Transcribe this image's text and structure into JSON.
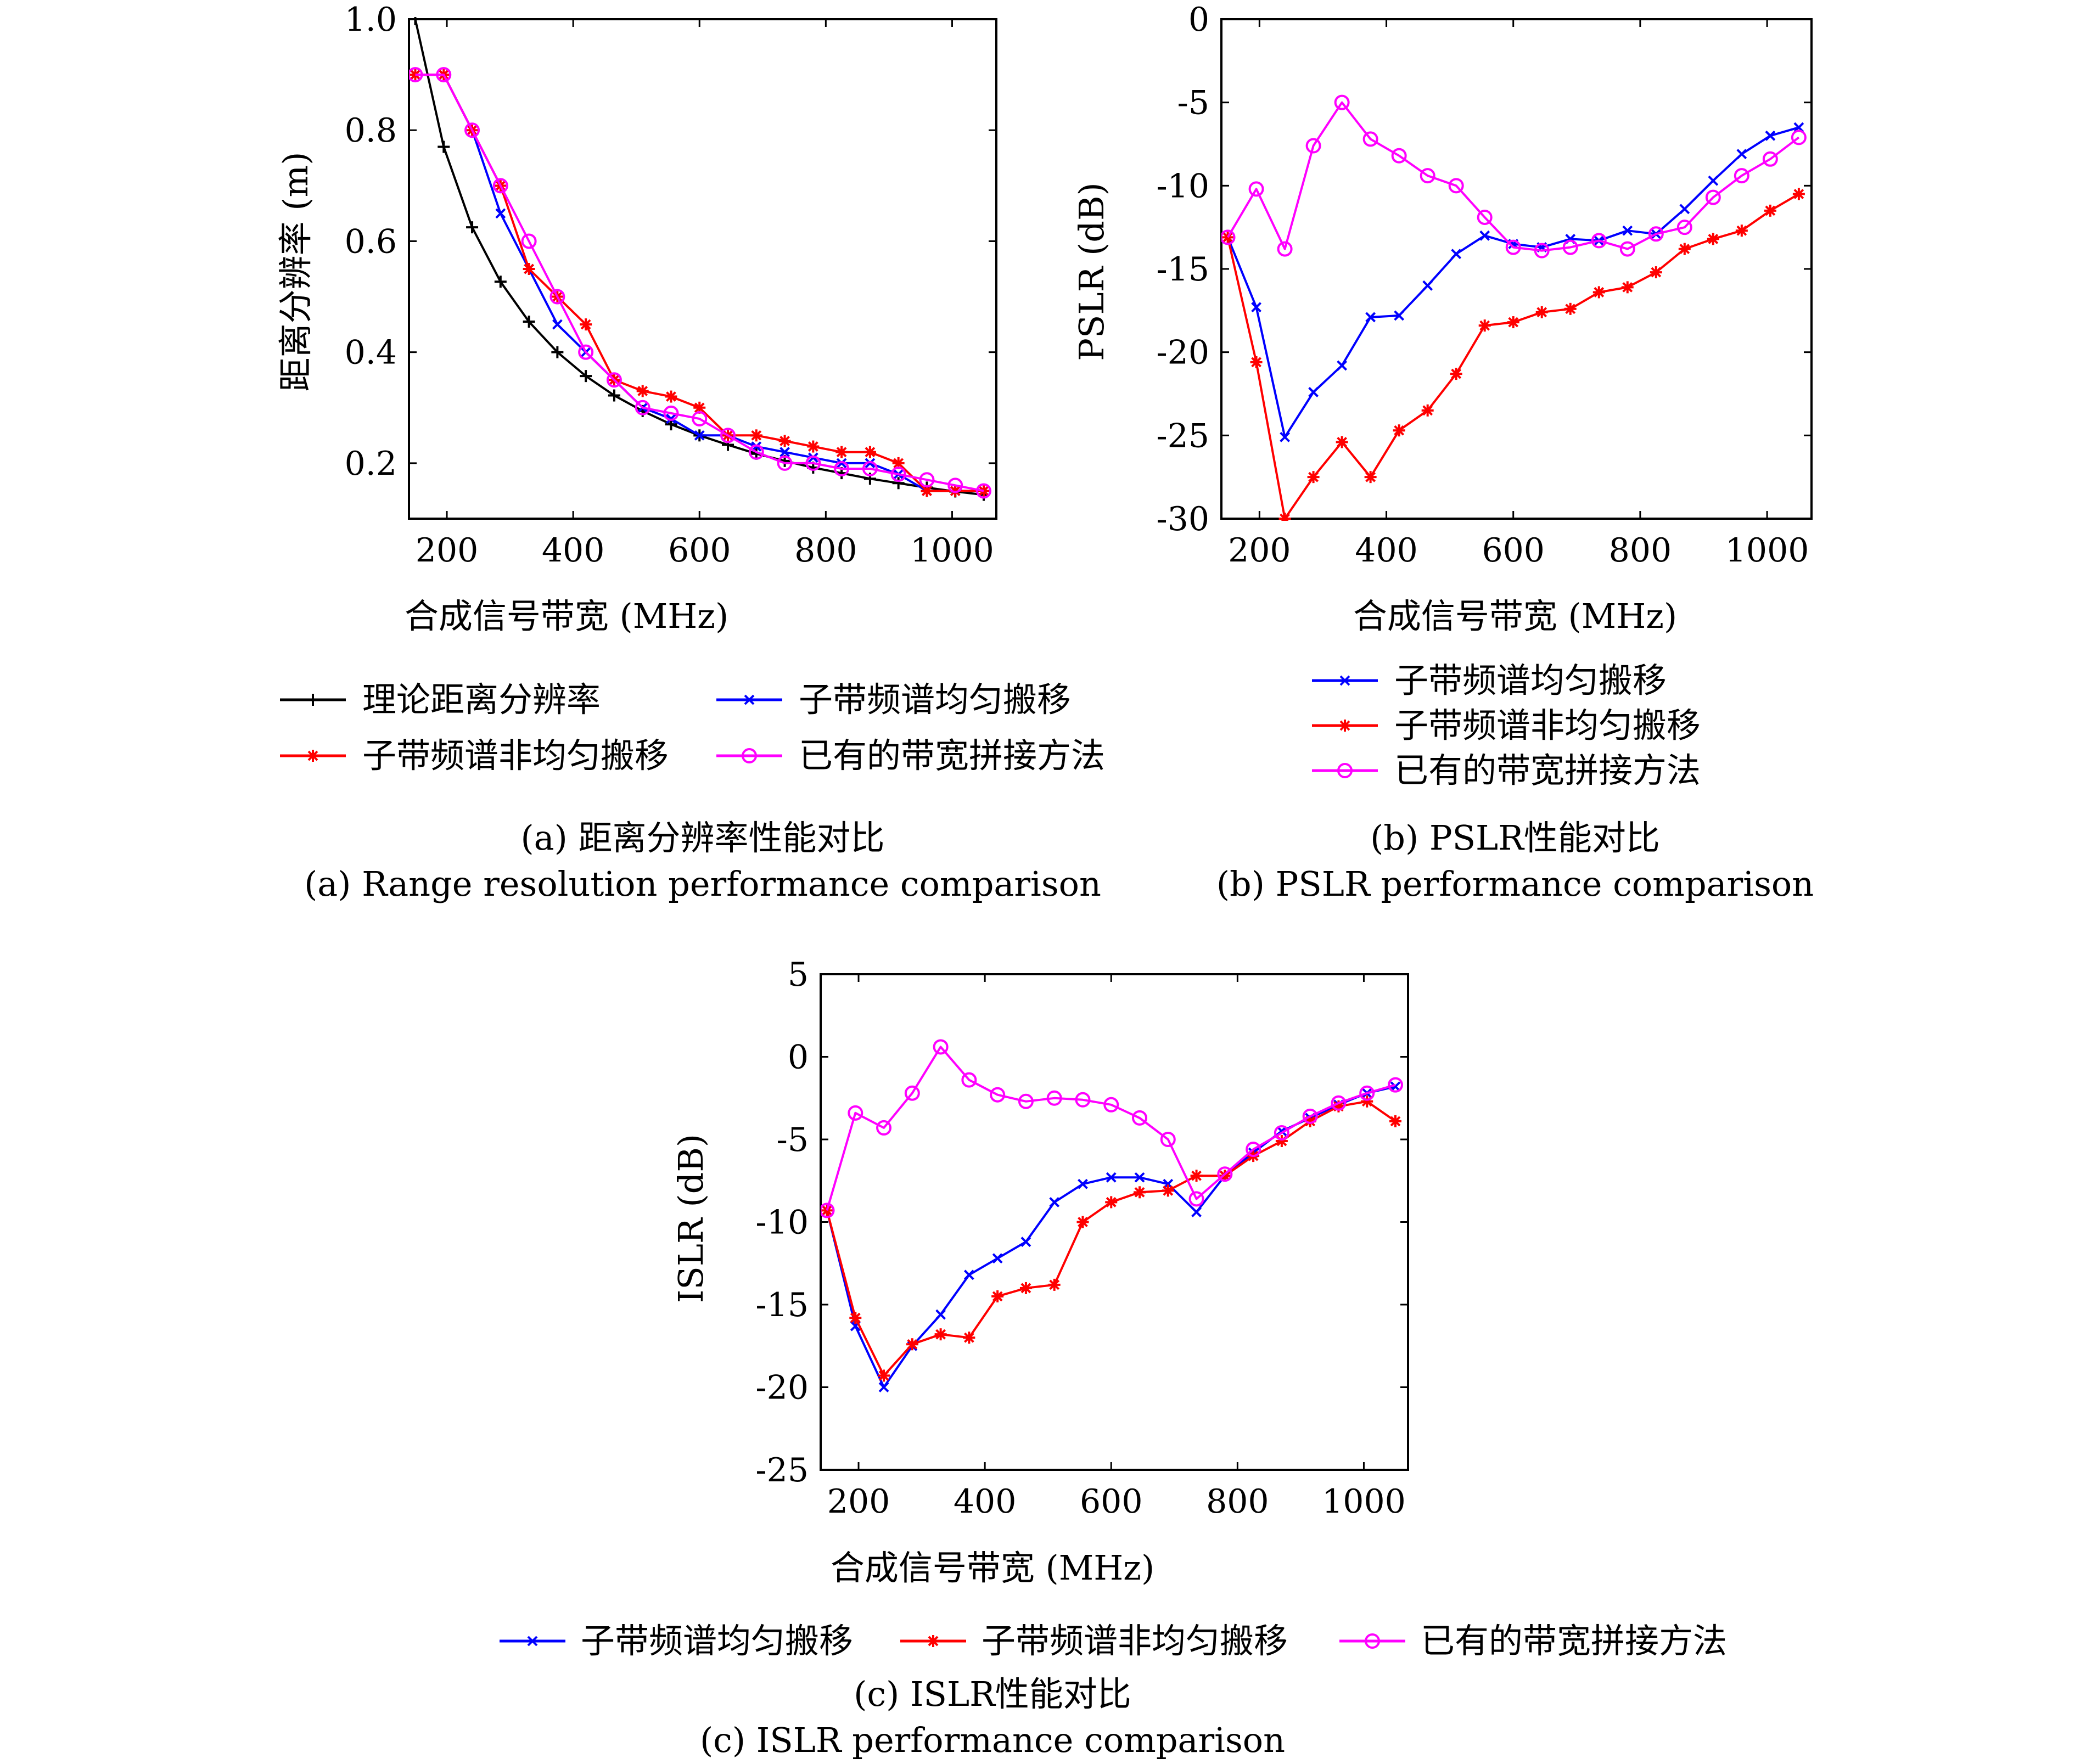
{
  "chart_data": [
    {
      "id": "a",
      "type": "line",
      "xlabel": "合成信号带宽 (MHz)",
      "ylabel": "距离分辨率 (m)",
      "xlim": [
        140,
        1070
      ],
      "ylim": [
        0.1,
        1.0
      ],
      "xticks": [
        "200",
        "400",
        "600",
        "800",
        "1000"
      ],
      "yticks": [
        "0.2",
        "0.4",
        "0.6",
        "0.8",
        "1.0"
      ],
      "grid": false,
      "legend_placement": "below",
      "legend": [
        "理论距离分辨率",
        "子带频谱均匀搬移",
        "子带频谱非均匀搬移",
        "已有的带宽拼接方法"
      ],
      "caption_cn": "(a) 距离分辨率性能对比",
      "caption_en": "(a) Range resolution performance comparison",
      "series": [
        {
          "name": "理论距离分辨率",
          "color": "#000000",
          "marker": "plus",
          "x": [
            150,
            195,
            240,
            285,
            330,
            375,
            420,
            465,
            510,
            555,
            600,
            645,
            690,
            735,
            780,
            825,
            870,
            915,
            960,
            1005,
            1050
          ],
          "y": [
            1.0,
            0.77,
            0.625,
            0.527,
            0.455,
            0.4,
            0.357,
            0.322,
            0.294,
            0.27,
            0.25,
            0.233,
            0.217,
            0.204,
            0.192,
            0.182,
            0.172,
            0.164,
            0.156,
            0.149,
            0.143
          ]
        },
        {
          "name": "子带频谱均匀搬移",
          "color": "#0000ff",
          "marker": "x",
          "x": [
            150,
            195,
            240,
            285,
            330,
            375,
            420,
            465,
            510,
            555,
            600,
            645,
            690,
            735,
            780,
            825,
            870,
            915,
            960,
            1005,
            1050
          ],
          "y": [
            0.9,
            0.9,
            0.8,
            0.65,
            0.55,
            0.45,
            0.4,
            0.35,
            0.3,
            0.28,
            0.25,
            0.25,
            0.23,
            0.22,
            0.21,
            0.2,
            0.2,
            0.18,
            0.15,
            0.15,
            0.15
          ]
        },
        {
          "name": "子带频谱非均匀搬移",
          "color": "#ff0000",
          "marker": "star",
          "x": [
            150,
            195,
            240,
            285,
            330,
            375,
            420,
            465,
            510,
            555,
            600,
            645,
            690,
            735,
            780,
            825,
            870,
            915,
            960,
            1005,
            1050
          ],
          "y": [
            0.9,
            0.9,
            0.8,
            0.7,
            0.55,
            0.5,
            0.45,
            0.35,
            0.33,
            0.32,
            0.3,
            0.25,
            0.25,
            0.24,
            0.23,
            0.22,
            0.22,
            0.2,
            0.15,
            0.15,
            0.15
          ]
        },
        {
          "name": "已有的带宽拼接方法",
          "color": "#ff00ff",
          "marker": "circle",
          "x": [
            150,
            195,
            240,
            285,
            330,
            375,
            420,
            465,
            510,
            555,
            600,
            645,
            690,
            735,
            780,
            825,
            870,
            915,
            960,
            1005,
            1050
          ],
          "y": [
            0.9,
            0.9,
            0.8,
            0.7,
            0.6,
            0.5,
            0.4,
            0.35,
            0.3,
            0.29,
            0.28,
            0.25,
            0.22,
            0.2,
            0.2,
            0.19,
            0.19,
            0.18,
            0.17,
            0.16,
            0.15
          ]
        }
      ]
    },
    {
      "id": "b",
      "type": "line",
      "xlabel": "合成信号带宽 (MHz)",
      "ylabel": "PSLR (dB)",
      "xlim": [
        140,
        1070
      ],
      "ylim": [
        -30,
        0
      ],
      "xticks": [
        "200",
        "400",
        "600",
        "800",
        "1000"
      ],
      "yticks": [
        "0",
        "-5",
        "-10",
        "-15",
        "-20",
        "-25",
        "-30"
      ],
      "grid": false,
      "legend_placement": "below",
      "legend": [
        "子带频谱均匀搬移",
        "子带频谱非均匀搬移",
        "已有的带宽拼接方法"
      ],
      "caption_cn": "(b) PSLR性能对比",
      "caption_en": "(b) PSLR performance comparison",
      "series": [
        {
          "name": "子带频谱均匀搬移",
          "color": "#0000ff",
          "marker": "x",
          "x": [
            150,
            195,
            240,
            285,
            330,
            375,
            420,
            465,
            510,
            555,
            600,
            645,
            690,
            735,
            780,
            825,
            870,
            915,
            960,
            1005,
            1050
          ],
          "y": [
            -13.1,
            -17.3,
            -25.1,
            -22.4,
            -20.8,
            -17.9,
            -17.8,
            -16.0,
            -14.1,
            -13.0,
            -13.5,
            -13.7,
            -13.2,
            -13.3,
            -12.7,
            -12.9,
            -11.4,
            -9.7,
            -8.1,
            -7.0,
            -6.5
          ]
        },
        {
          "name": "子带频谱非均匀搬移",
          "color": "#ff0000",
          "marker": "star",
          "x": [
            150,
            195,
            240,
            285,
            330,
            375,
            420,
            465,
            510,
            555,
            600,
            645,
            690,
            735,
            780,
            825,
            870,
            915,
            960,
            1005,
            1050
          ],
          "y": [
            -13.1,
            -20.6,
            -30.0,
            -27.5,
            -25.4,
            -27.5,
            -24.7,
            -23.5,
            -21.3,
            -18.4,
            -18.2,
            -17.6,
            -17.4,
            -16.4,
            -16.1,
            -15.2,
            -13.8,
            -13.2,
            -12.7,
            -11.5,
            -10.5
          ]
        },
        {
          "name": "已有的带宽拼接方法",
          "color": "#ff00ff",
          "marker": "circle",
          "x": [
            150,
            195,
            240,
            285,
            330,
            375,
            420,
            465,
            510,
            555,
            600,
            645,
            690,
            735,
            780,
            825,
            870,
            915,
            960,
            1005,
            1050
          ],
          "y": [
            -13.1,
            -10.2,
            -13.8,
            -7.6,
            -5.0,
            -7.2,
            -8.2,
            -9.4,
            -10.0,
            -11.9,
            -13.7,
            -13.9,
            -13.7,
            -13.3,
            -13.8,
            -12.9,
            -12.5,
            -10.7,
            -9.4,
            -8.4,
            -7.1
          ]
        }
      ]
    },
    {
      "id": "c",
      "type": "line",
      "xlabel": "合成信号带宽 (MHz)",
      "ylabel": "ISLR (dB)",
      "xlim": [
        140,
        1070
      ],
      "ylim": [
        -25,
        5
      ],
      "xticks": [
        "200",
        "400",
        "600",
        "800",
        "1000"
      ],
      "yticks": [
        "5",
        "0",
        "-5",
        "-10",
        "-15",
        "-20",
        "-25"
      ],
      "grid": false,
      "legend_placement": "below",
      "legend": [
        "子带频谱均匀搬移",
        "子带频谱非均匀搬移",
        "已有的带宽拼接方法"
      ],
      "caption_cn": "(c) ISLR性能对比",
      "caption_en": "(c) ISLR performance comparison",
      "series": [
        {
          "name": "子带频谱均匀搬移",
          "color": "#0000ff",
          "marker": "x",
          "x": [
            150,
            195,
            240,
            285,
            330,
            375,
            420,
            465,
            510,
            555,
            600,
            645,
            690,
            735,
            780,
            825,
            870,
            915,
            960,
            1005,
            1050
          ],
          "y": [
            -9.3,
            -16.3,
            -20.0,
            -17.5,
            -15.6,
            -13.2,
            -12.2,
            -11.2,
            -8.8,
            -7.7,
            -7.3,
            -7.3,
            -7.7,
            -9.4,
            -7.2,
            -5.8,
            -4.5,
            -3.7,
            -2.9,
            -2.2,
            -1.8
          ]
        },
        {
          "name": "子带频谱非均匀搬移",
          "color": "#ff0000",
          "marker": "star",
          "x": [
            150,
            195,
            240,
            285,
            330,
            375,
            420,
            465,
            510,
            555,
            600,
            645,
            690,
            735,
            780,
            825,
            870,
            915,
            960,
            1005,
            1050
          ],
          "y": [
            -9.3,
            -15.8,
            -19.3,
            -17.4,
            -16.8,
            -17.0,
            -14.5,
            -14.0,
            -13.8,
            -10.0,
            -8.8,
            -8.2,
            -8.1,
            -7.2,
            -7.2,
            -6.0,
            -5.1,
            -3.9,
            -3.0,
            -2.7,
            -3.9
          ]
        },
        {
          "name": "已有的带宽拼接方法",
          "color": "#ff00ff",
          "marker": "circle",
          "x": [
            150,
            195,
            240,
            285,
            330,
            375,
            420,
            465,
            510,
            555,
            600,
            645,
            690,
            735,
            780,
            825,
            870,
            915,
            960,
            1005,
            1050
          ],
          "y": [
            -9.3,
            -3.4,
            -4.3,
            -2.2,
            0.6,
            -1.4,
            -2.3,
            -2.7,
            -2.5,
            -2.6,
            -2.9,
            -3.7,
            -5.0,
            -8.6,
            -7.1,
            -5.6,
            -4.6,
            -3.6,
            -2.8,
            -2.2,
            -1.7
          ]
        }
      ]
    }
  ]
}
